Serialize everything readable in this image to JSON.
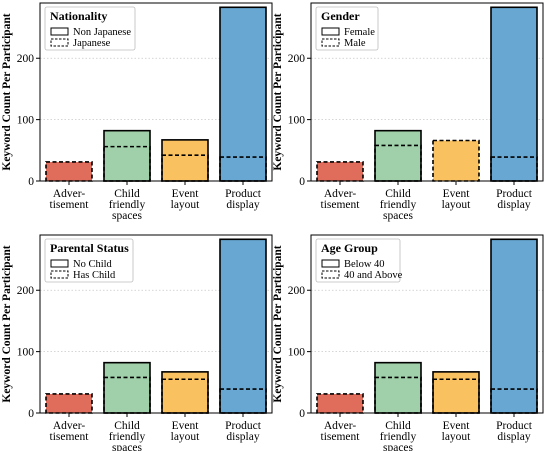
{
  "chart_data": [
    {
      "type": "bar",
      "ylabel": "Keyword Count Per Participant",
      "categories": [
        [
          "Adver-",
          "tisement"
        ],
        [
          "Child",
          "friendly",
          "spaces"
        ],
        [
          "Event",
          "layout"
        ],
        [
          "Product",
          "display"
        ]
      ],
      "colors": [
        "#e06c5b",
        "#9fd0a9",
        "#f9c15f",
        "#68a7d2"
      ],
      "ylim": [
        0,
        290
      ],
      "yticks": [
        0,
        100,
        200
      ],
      "grid": "horizontal-dotted",
      "legend": {
        "title": "Nationality",
        "entries": [
          "Non Japanese",
          "Japanese"
        ],
        "placement": "top-left"
      },
      "series": [
        {
          "name": "Non Japanese",
          "style": "solid",
          "values": [
            31,
            82,
            67,
            283
          ]
        },
        {
          "name": "Japanese",
          "style": "dashed",
          "values": [
            31,
            56,
            42,
            39
          ]
        }
      ]
    },
    {
      "type": "bar",
      "ylabel": "Keyword Count Per Participant",
      "categories": [
        [
          "Adver-",
          "tisement"
        ],
        [
          "Child",
          "friendly",
          "spaces"
        ],
        [
          "Event",
          "layout"
        ],
        [
          "Product",
          "display"
        ]
      ],
      "colors": [
        "#e06c5b",
        "#9fd0a9",
        "#f9c15f",
        "#68a7d2"
      ],
      "ylim": [
        0,
        290
      ],
      "yticks": [
        0,
        100,
        200
      ],
      "grid": "horizontal-dotted",
      "legend": {
        "title": "Gender",
        "entries": [
          "Female",
          "Male"
        ],
        "placement": "top-left"
      },
      "series": [
        {
          "name": "Female",
          "style": "solid",
          "values": [
            31,
            82,
            66,
            283
          ]
        },
        {
          "name": "Male",
          "style": "dashed",
          "values": [
            31,
            58,
            66,
            39
          ]
        }
      ]
    },
    {
      "type": "bar",
      "ylabel": "Keyword Count Per Participant",
      "categories": [
        [
          "Adver-",
          "tisement"
        ],
        [
          "Child",
          "friendly",
          "spaces"
        ],
        [
          "Event",
          "layout"
        ],
        [
          "Product",
          "display"
        ]
      ],
      "colors": [
        "#e06c5b",
        "#9fd0a9",
        "#f9c15f",
        "#68a7d2"
      ],
      "ylim": [
        0,
        290
      ],
      "yticks": [
        0,
        100,
        200
      ],
      "grid": "horizontal-dotted",
      "legend": {
        "title": "Parental Status",
        "entries": [
          "No Child",
          "Has Child"
        ],
        "placement": "top-left"
      },
      "series": [
        {
          "name": "No Child",
          "style": "solid",
          "values": [
            31,
            82,
            67,
            283
          ]
        },
        {
          "name": "Has Child",
          "style": "dashed",
          "values": [
            31,
            58,
            55,
            39
          ]
        }
      ]
    },
    {
      "type": "bar",
      "ylabel": "Keyword Count Per Participant",
      "categories": [
        [
          "Adver-",
          "tisement"
        ],
        [
          "Child",
          "friendly",
          "spaces"
        ],
        [
          "Event",
          "layout"
        ],
        [
          "Product",
          "display"
        ]
      ],
      "colors": [
        "#e06c5b",
        "#9fd0a9",
        "#f9c15f",
        "#68a7d2"
      ],
      "ylim": [
        0,
        290
      ],
      "yticks": [
        0,
        100,
        200
      ],
      "grid": "horizontal-dotted",
      "legend": {
        "title": "Age Group",
        "entries": [
          "Below 40",
          "40 and Above"
        ],
        "placement": "top-left"
      },
      "series": [
        {
          "name": "Below 40",
          "style": "solid",
          "values": [
            31,
            82,
            67,
            283
          ]
        },
        {
          "name": "40 and Above",
          "style": "dashed",
          "values": [
            31,
            58,
            55,
            39
          ]
        }
      ]
    }
  ]
}
